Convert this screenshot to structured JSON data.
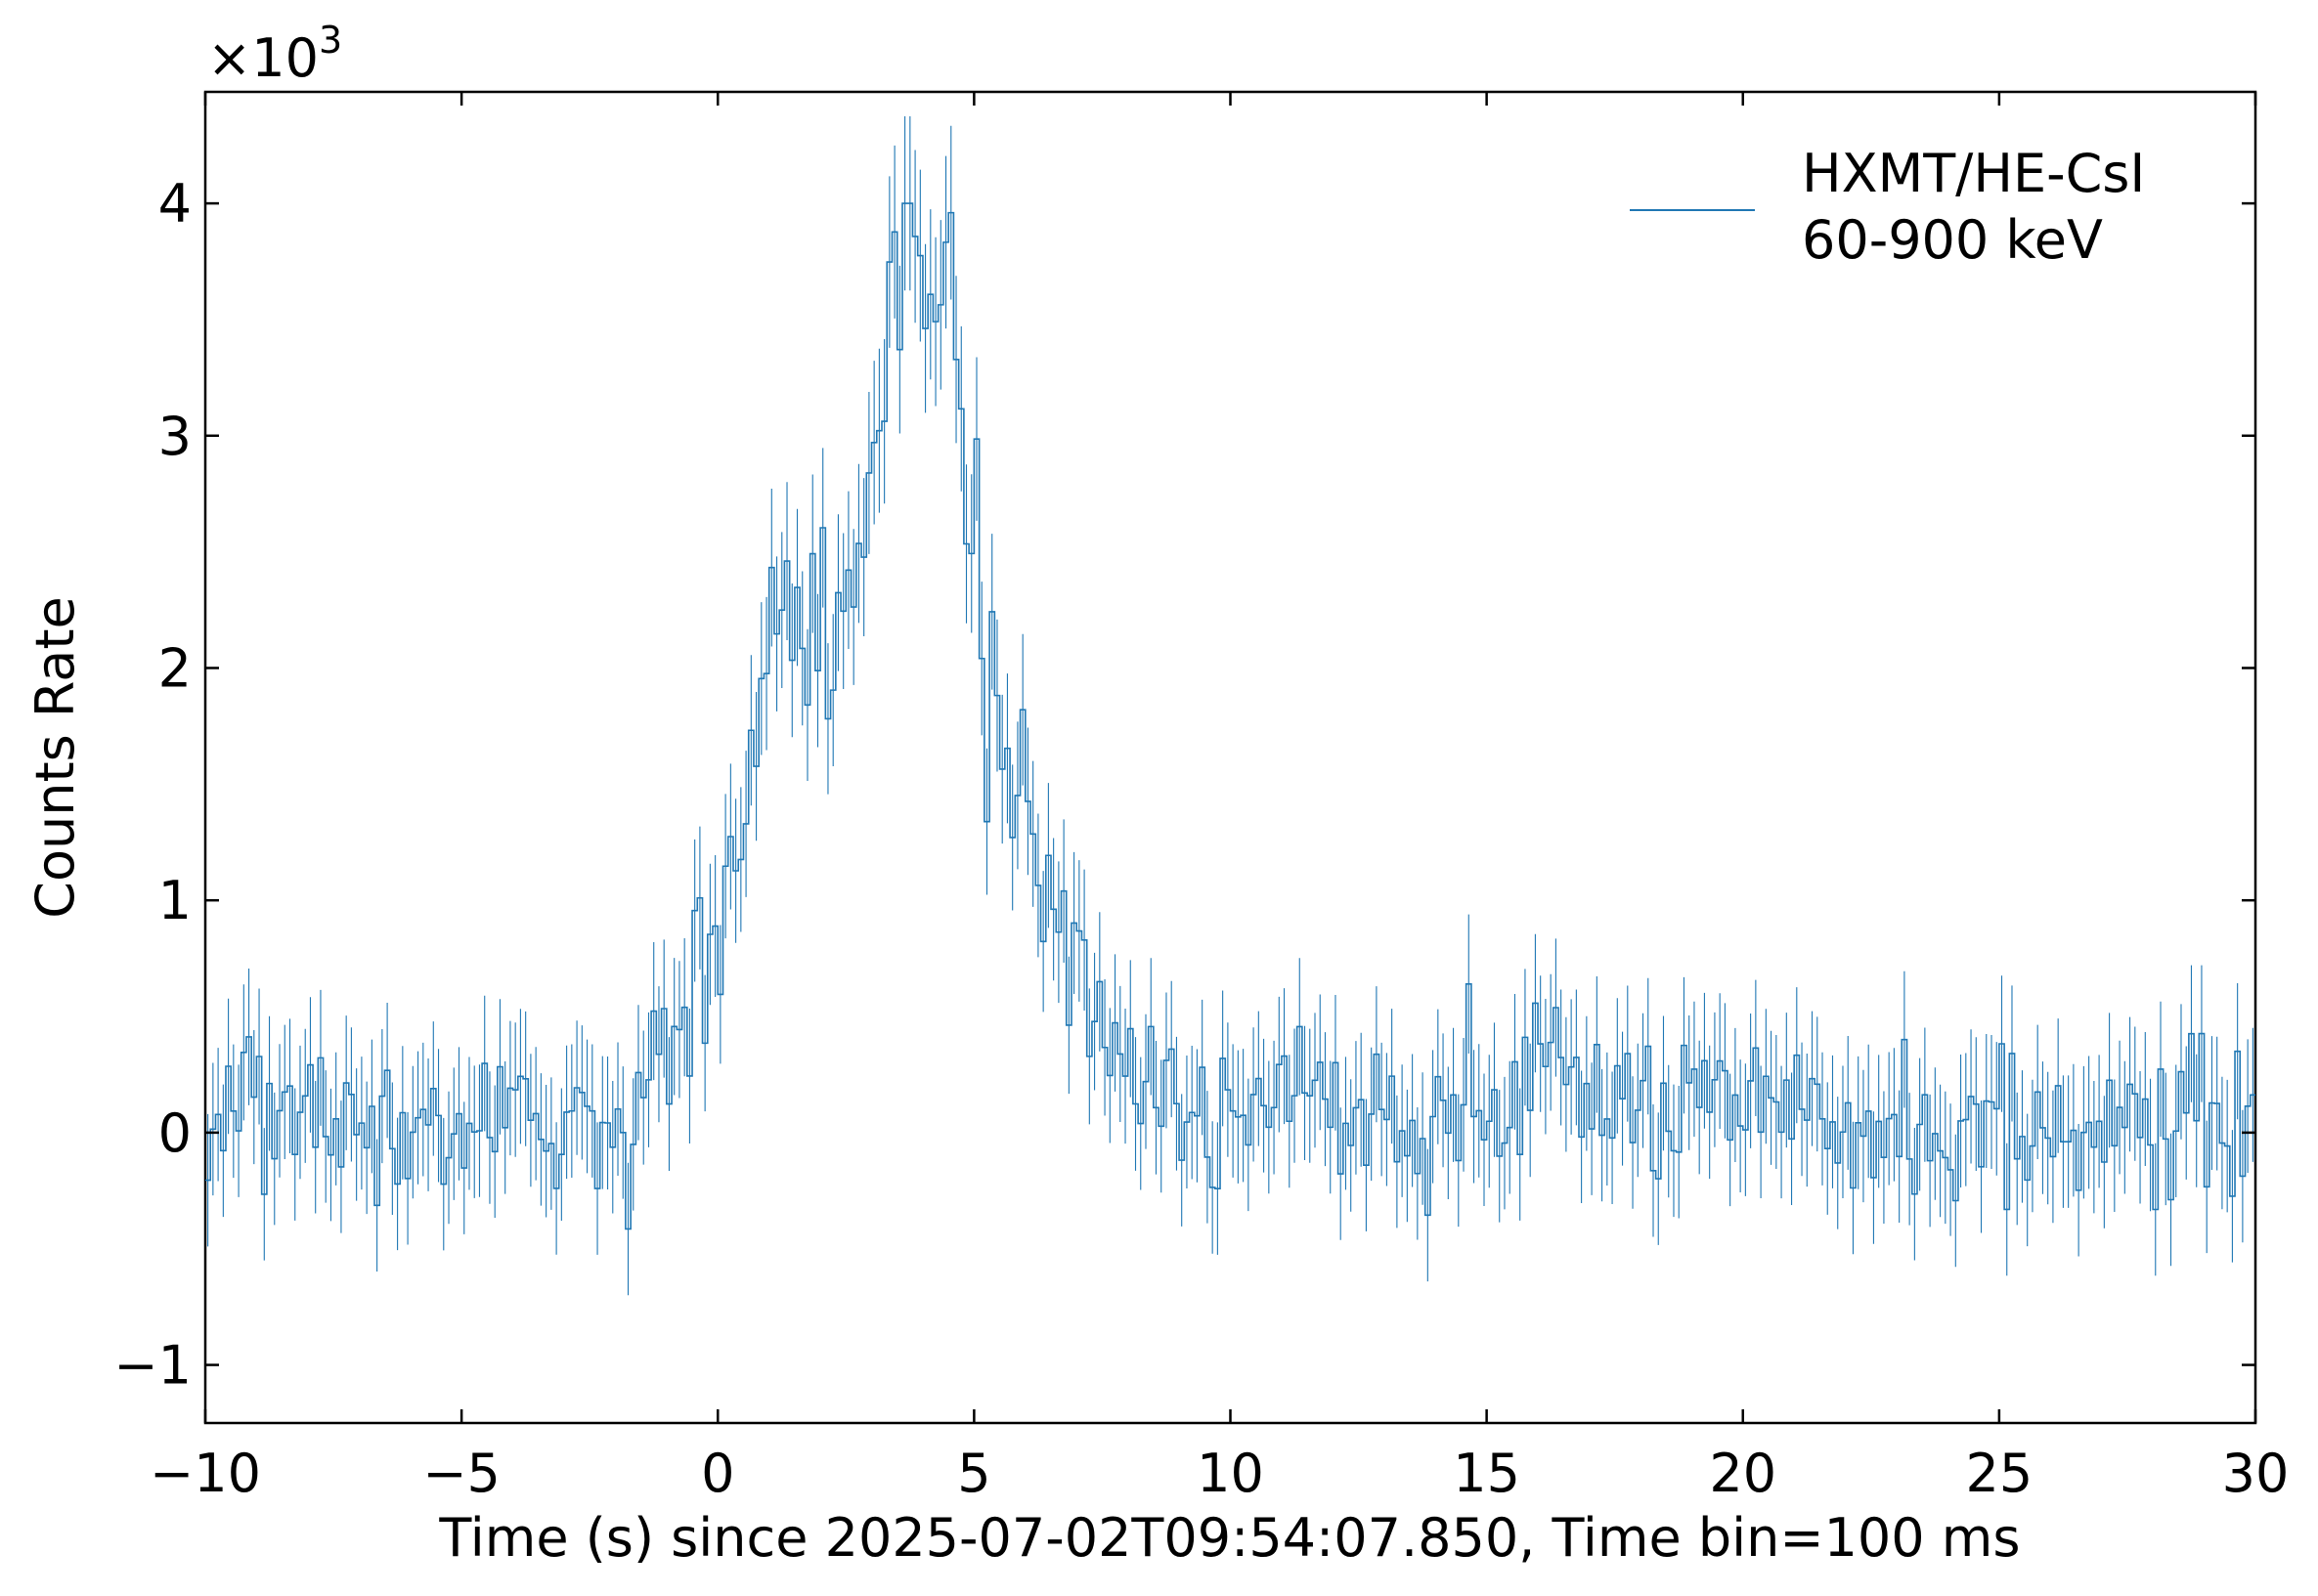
{
  "chart_data": {
    "type": "line",
    "xlabel": "Time (s) since 2025-07-02T09:54:07.850, Time bin=100 ms",
    "ylabel": "Counts Rate",
    "y_multiplier": "×10",
    "y_multiplier_exp": "3",
    "xlim": [
      -10,
      30
    ],
    "ylim": [
      -1.25,
      4.48
    ],
    "x_ticks": [
      -10,
      -5,
      0,
      5,
      10,
      15,
      20,
      25,
      30
    ],
    "x_tick_labels": [
      "−10",
      "−5",
      "0",
      "5",
      "10",
      "15",
      "20",
      "25",
      "30"
    ],
    "y_ticks": [
      -1,
      0,
      1,
      2,
      3,
      4
    ],
    "y_tick_labels": [
      "−1",
      "0",
      "1",
      "2",
      "3",
      "4"
    ],
    "grid": false,
    "legend_position": "top-right",
    "series": [
      {
        "name": "HXMT/HE-CsI\n60-900 keV",
        "legend_line1": "HXMT/HE-CsI",
        "legend_line2": "60-900 keV",
        "color": "#1f77b4",
        "bin_width": 0.1,
        "x_start": -10.0,
        "x_end": 30.0,
        "error_bar": 0.3,
        "profile": [
          [
            -10.0,
            0.0
          ],
          [
            -9.6,
            0.05
          ],
          [
            -9.2,
            0.25
          ],
          [
            -8.8,
            0.0
          ],
          [
            -8.0,
            0.1
          ],
          [
            -7.0,
            0.05
          ],
          [
            -6.0,
            -0.1
          ],
          [
            -5.0,
            -0.05
          ],
          [
            -4.0,
            0.1
          ],
          [
            -3.0,
            0.0
          ],
          [
            -2.0,
            -0.1
          ],
          [
            -1.5,
            0.2
          ],
          [
            -1.0,
            0.3
          ],
          [
            -0.5,
            0.6
          ],
          [
            0.0,
            1.05
          ],
          [
            0.5,
            1.35
          ],
          [
            0.8,
            2.1
          ],
          [
            1.2,
            2.35
          ],
          [
            2.0,
            2.25
          ],
          [
            2.5,
            2.2
          ],
          [
            3.0,
            2.8
          ],
          [
            3.5,
            3.75
          ],
          [
            4.0,
            3.75
          ],
          [
            4.6,
            3.6
          ],
          [
            5.0,
            2.6
          ],
          [
            5.2,
            2.0
          ],
          [
            5.5,
            1.7
          ],
          [
            6.0,
            1.45
          ],
          [
            6.5,
            1.0
          ],
          [
            7.0,
            0.8
          ],
          [
            7.5,
            0.5
          ],
          [
            8.0,
            0.25
          ],
          [
            8.5,
            0.15
          ],
          [
            9.0,
            0.1
          ],
          [
            10.0,
            0.1
          ],
          [
            12.0,
            0.12
          ],
          [
            15.0,
            0.05
          ],
          [
            16.0,
            0.3
          ],
          [
            17.0,
            0.15
          ],
          [
            20.0,
            0.05
          ],
          [
            25.0,
            0.0
          ],
          [
            30.0,
            0.05
          ]
        ]
      }
    ]
  }
}
